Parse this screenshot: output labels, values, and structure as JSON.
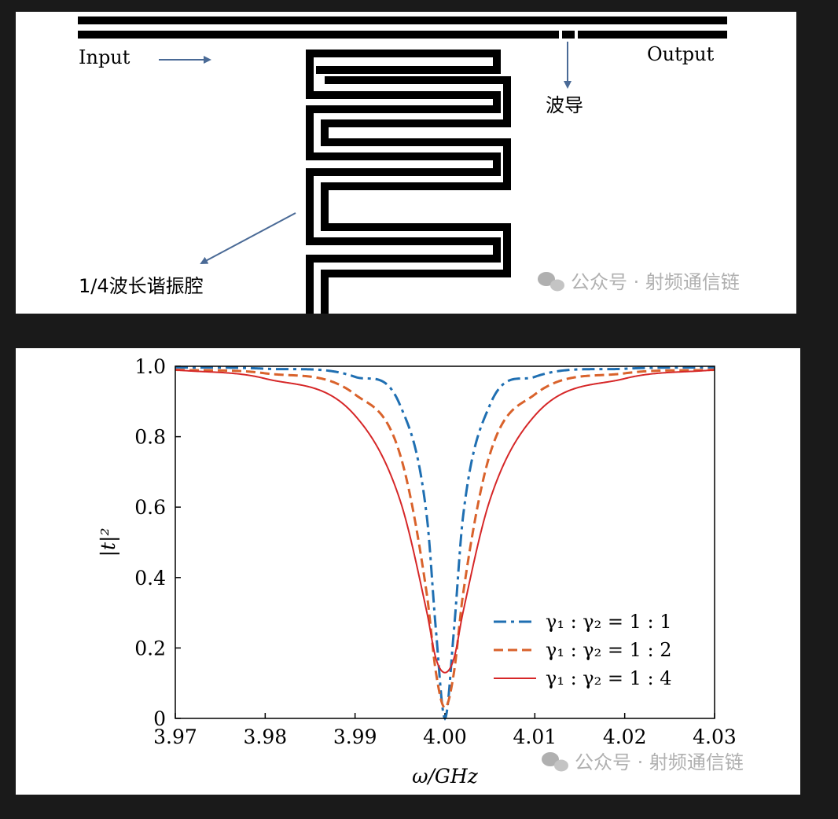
{
  "diagram": {
    "input_label": "Input",
    "output_label": "Output",
    "waveguide_label": "波导",
    "resonator_label": "1/4波长谐振腔",
    "watermark": "公众号 · 射频通信链"
  },
  "chart_data": {
    "type": "line",
    "xlabel": "ω/GHz",
    "ylabel": "|t|²",
    "xlim": [
      3.97,
      4.03
    ],
    "ylim": [
      0,
      1.0
    ],
    "x_ticks": [
      "3.97",
      "3.98",
      "3.99",
      "4.00",
      "4.01",
      "4.02",
      "4.03"
    ],
    "y_ticks": [
      "0",
      "0.2",
      "0.4",
      "0.6",
      "0.8",
      "1.0"
    ],
    "resonance": 4.0,
    "legend_position": "lower-right",
    "series": [
      {
        "name": "γ₁ : γ₂ = 1 : 1",
        "style": "dashdot",
        "color": "#1f6fb2",
        "x": [
          3.97,
          3.98,
          3.99,
          3.995,
          3.998,
          3.999,
          4.0,
          4.001,
          4.002,
          4.005,
          4.01,
          4.02,
          4.03
        ],
        "y": [
          0.997,
          0.993,
          0.97,
          0.89,
          0.57,
          0.25,
          0.0,
          0.25,
          0.57,
          0.89,
          0.97,
          0.993,
          0.997
        ]
      },
      {
        "name": "γ₁ : γ₂ = 1 : 2",
        "style": "dashed",
        "color": "#d9622b",
        "x": [
          3.97,
          3.98,
          3.99,
          3.995,
          3.998,
          3.999,
          4.0,
          4.001,
          4.002,
          4.005,
          4.01,
          4.02,
          4.03
        ],
        "y": [
          0.99,
          0.98,
          0.92,
          0.75,
          0.35,
          0.13,
          0.03,
          0.13,
          0.35,
          0.75,
          0.92,
          0.98,
          0.99
        ]
      },
      {
        "name": "γ₁ : γ₂ = 1 : 4",
        "style": "solid",
        "color": "#d62728",
        "x": [
          3.97,
          3.98,
          3.99,
          3.995,
          3.998,
          3.999,
          4.0,
          4.001,
          4.002,
          4.005,
          4.01,
          4.02,
          4.03
        ],
        "y": [
          0.99,
          0.965,
          0.86,
          0.62,
          0.3,
          0.17,
          0.13,
          0.17,
          0.3,
          0.62,
          0.86,
          0.965,
          0.99
        ]
      }
    ],
    "watermark": "公众号 · 射频通信链"
  },
  "colors": {
    "arrow": "#4a6a96",
    "watermark": "#b0b0b0"
  }
}
